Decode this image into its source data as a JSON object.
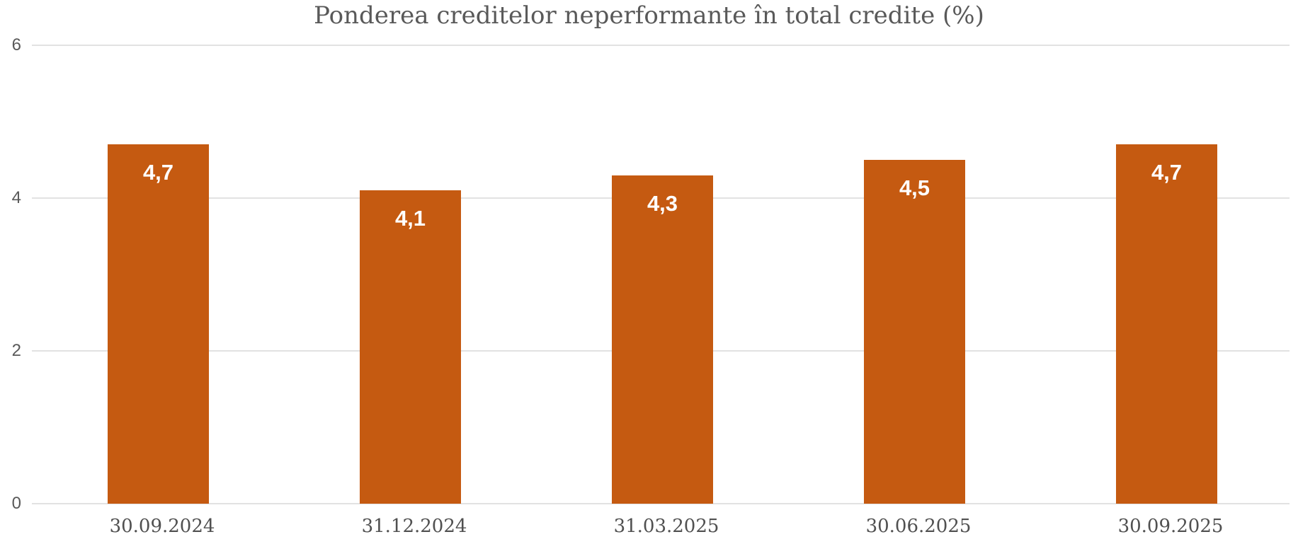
{
  "title": "Ponderea creditelor neperformante în total credite (%)",
  "colors": {
    "bar": "#C55A11",
    "title_text": "#595959",
    "y_axis_label": "#595959",
    "x_axis_label": "#505050",
    "gridline": "#E2E2E2",
    "data_label": "#FFFFFF",
    "background": "#FFFFFF"
  },
  "chart_data": {
    "type": "bar",
    "title": "Ponderea creditelor neperformante în total credite (%)",
    "categories": [
      "30.09.2024",
      "31.12.2024",
      "31.03.2025",
      "30.06.2025",
      "30.09.2025"
    ],
    "values": [
      4.7,
      4.1,
      4.3,
      4.5,
      4.7
    ],
    "value_labels": [
      "4,7",
      "4,1",
      "4,3",
      "4,5",
      "4,7"
    ],
    "series_name": "Ponderea creditelor neperformante",
    "xlabel": "",
    "ylabel": "",
    "ylim": [
      0,
      6
    ],
    "yticks": [
      0,
      2,
      4,
      6
    ],
    "ytick_labels": [
      "0",
      "2",
      "4",
      "6"
    ],
    "grid": true,
    "legend": false,
    "bar_color": "#C55A11",
    "data_label_position": "inside-top",
    "decimal_separator": ","
  }
}
